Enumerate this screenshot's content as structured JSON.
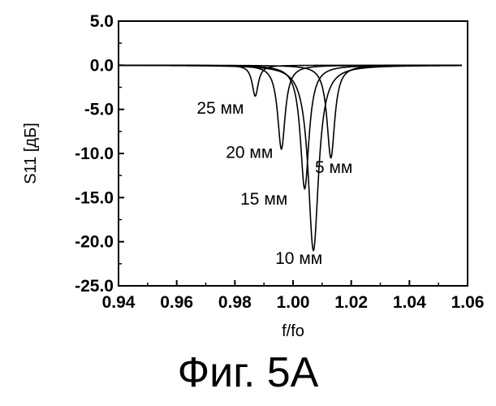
{
  "figure": {
    "caption": "Фиг. 5A"
  },
  "chart_data": {
    "type": "line",
    "xlabel": "f/fo",
    "ylabel": "S11 [дБ]",
    "xlim": [
      0.94,
      1.06
    ],
    "ylim": [
      -25.0,
      5.0
    ],
    "x_ticks": [
      "0.94",
      "0.96",
      "0.98",
      "1.00",
      "1.02",
      "1.04",
      "1.06"
    ],
    "y_ticks": [
      "5.0",
      "0.0",
      "-5.0",
      "-10.0",
      "-15.0",
      "-20.0",
      "-25.0"
    ],
    "grid": false,
    "series": [
      {
        "name": "25 мм",
        "resonance_x": 0.987,
        "min_db": -3.5,
        "label_x": 0.975,
        "label_y": -5.5
      },
      {
        "name": "20 мм",
        "resonance_x": 0.996,
        "min_db": -9.5,
        "label_x": 0.985,
        "label_y": -10.5
      },
      {
        "name": "15 мм",
        "resonance_x": 1.004,
        "min_db": -14.0,
        "label_x": 0.99,
        "label_y": -15.8
      },
      {
        "name": "10 мм",
        "resonance_x": 1.007,
        "min_db": -21.0,
        "label_x": 1.002,
        "label_y": -22.5
      },
      {
        "name": "5 мм",
        "resonance_x": 1.013,
        "min_db": -10.5,
        "label_x": 1.014,
        "label_y": -12.2
      }
    ],
    "x_range_plotted": [
      0.94,
      1.058
    ]
  }
}
